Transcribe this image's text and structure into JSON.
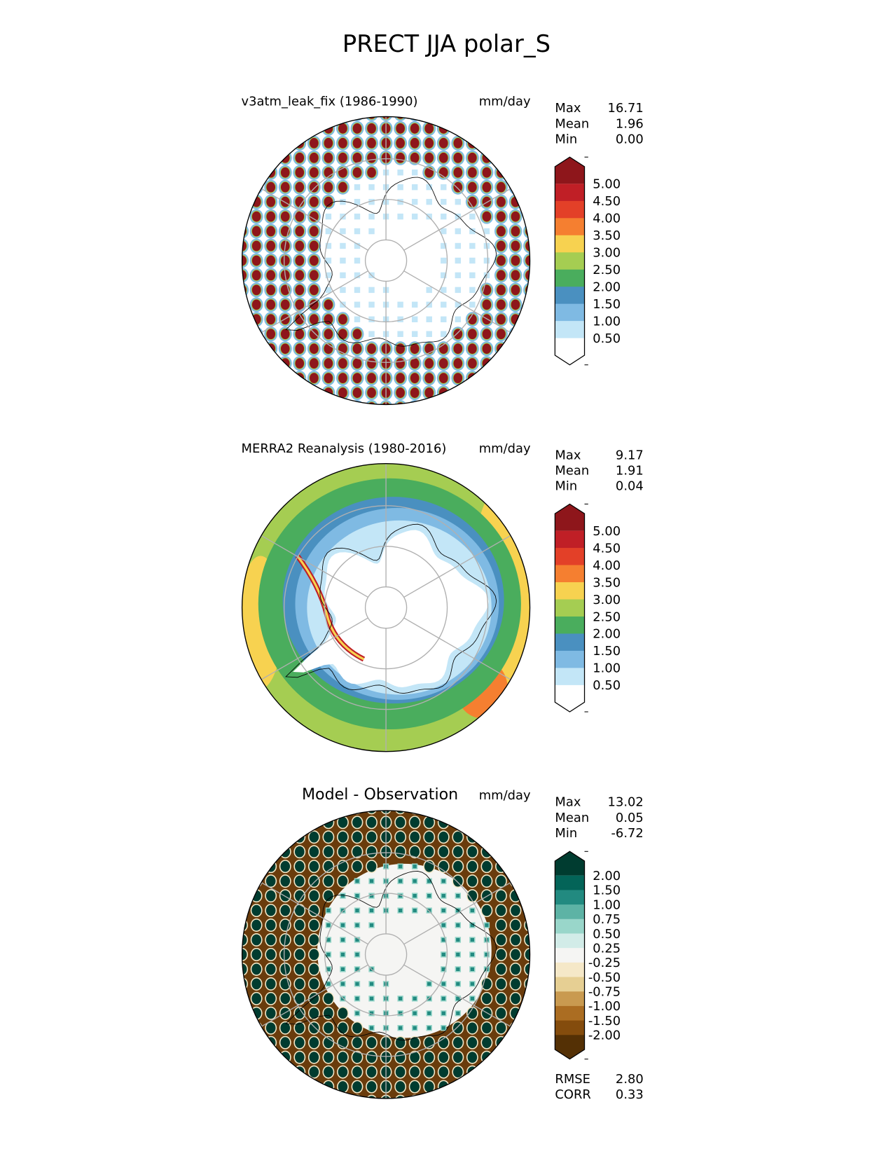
{
  "title": "PRECT JJA polar_S",
  "chart_data": [
    {
      "type": "heatmap",
      "title": "v3atm_leak_fix (1986-1990)",
      "units": "mm/day",
      "projection": "south polar stereographic",
      "stats": {
        "labels": [
          "Max",
          "Mean",
          "Min"
        ],
        "values": [
          "16.71",
          "1.96",
          "0.00"
        ]
      },
      "colorbar": {
        "ticks": [
          "0.50",
          "1.00",
          "1.50",
          "2.00",
          "2.50",
          "3.00",
          "3.50",
          "4.00",
          "4.50",
          "5.00"
        ],
        "colors": [
          "#ffffff",
          "#c3e6f7",
          "#7fbae3",
          "#4a90c0",
          "#4aad5d",
          "#a5cd52",
          "#f7d250",
          "#f57f30",
          "#e34028",
          "#c01f26",
          "#8e161b"
        ],
        "extend": "both"
      }
    },
    {
      "type": "heatmap",
      "title": "MERRA2 Reanalysis (1980-2016)",
      "units": "mm/day",
      "projection": "south polar stereographic",
      "stats": {
        "labels": [
          "Max",
          "Mean",
          "Min"
        ],
        "values": [
          "9.17",
          "1.91",
          "0.04"
        ]
      },
      "colorbar": {
        "ticks": [
          "0.50",
          "1.00",
          "1.50",
          "2.00",
          "2.50",
          "3.00",
          "3.50",
          "4.00",
          "4.50",
          "5.00"
        ],
        "colors": [
          "#ffffff",
          "#c3e6f7",
          "#7fbae3",
          "#4a90c0",
          "#4aad5d",
          "#a5cd52",
          "#f7d250",
          "#f57f30",
          "#e34028",
          "#c01f26",
          "#8e161b"
        ],
        "extend": "both"
      }
    },
    {
      "type": "heatmap",
      "title": "Model - Observation",
      "units": "mm/day",
      "projection": "south polar stereographic",
      "stats": {
        "labels": [
          "Max",
          "Mean",
          "Min"
        ],
        "values": [
          "13.02",
          "0.05",
          "-6.72"
        ]
      },
      "extra_stats": {
        "labels": [
          "RMSE",
          "CORR"
        ],
        "values": [
          "2.80",
          "0.33"
        ]
      },
      "colorbar": {
        "ticks": [
          "-2.00",
          "-1.50",
          "-1.00",
          "-0.75",
          "-0.50",
          "-0.25",
          "0.25",
          "0.50",
          "0.75",
          "1.00",
          "1.50",
          "2.00"
        ],
        "colors": [
          "#543005",
          "#844c0d",
          "#ab6d22",
          "#c99a50",
          "#e6cf93",
          "#f5e8c8",
          "#f5f5f3",
          "#d2ece8",
          "#99d6ca",
          "#5db3a5",
          "#228a80",
          "#036458",
          "#003c30"
        ],
        "extend": "both"
      }
    }
  ]
}
